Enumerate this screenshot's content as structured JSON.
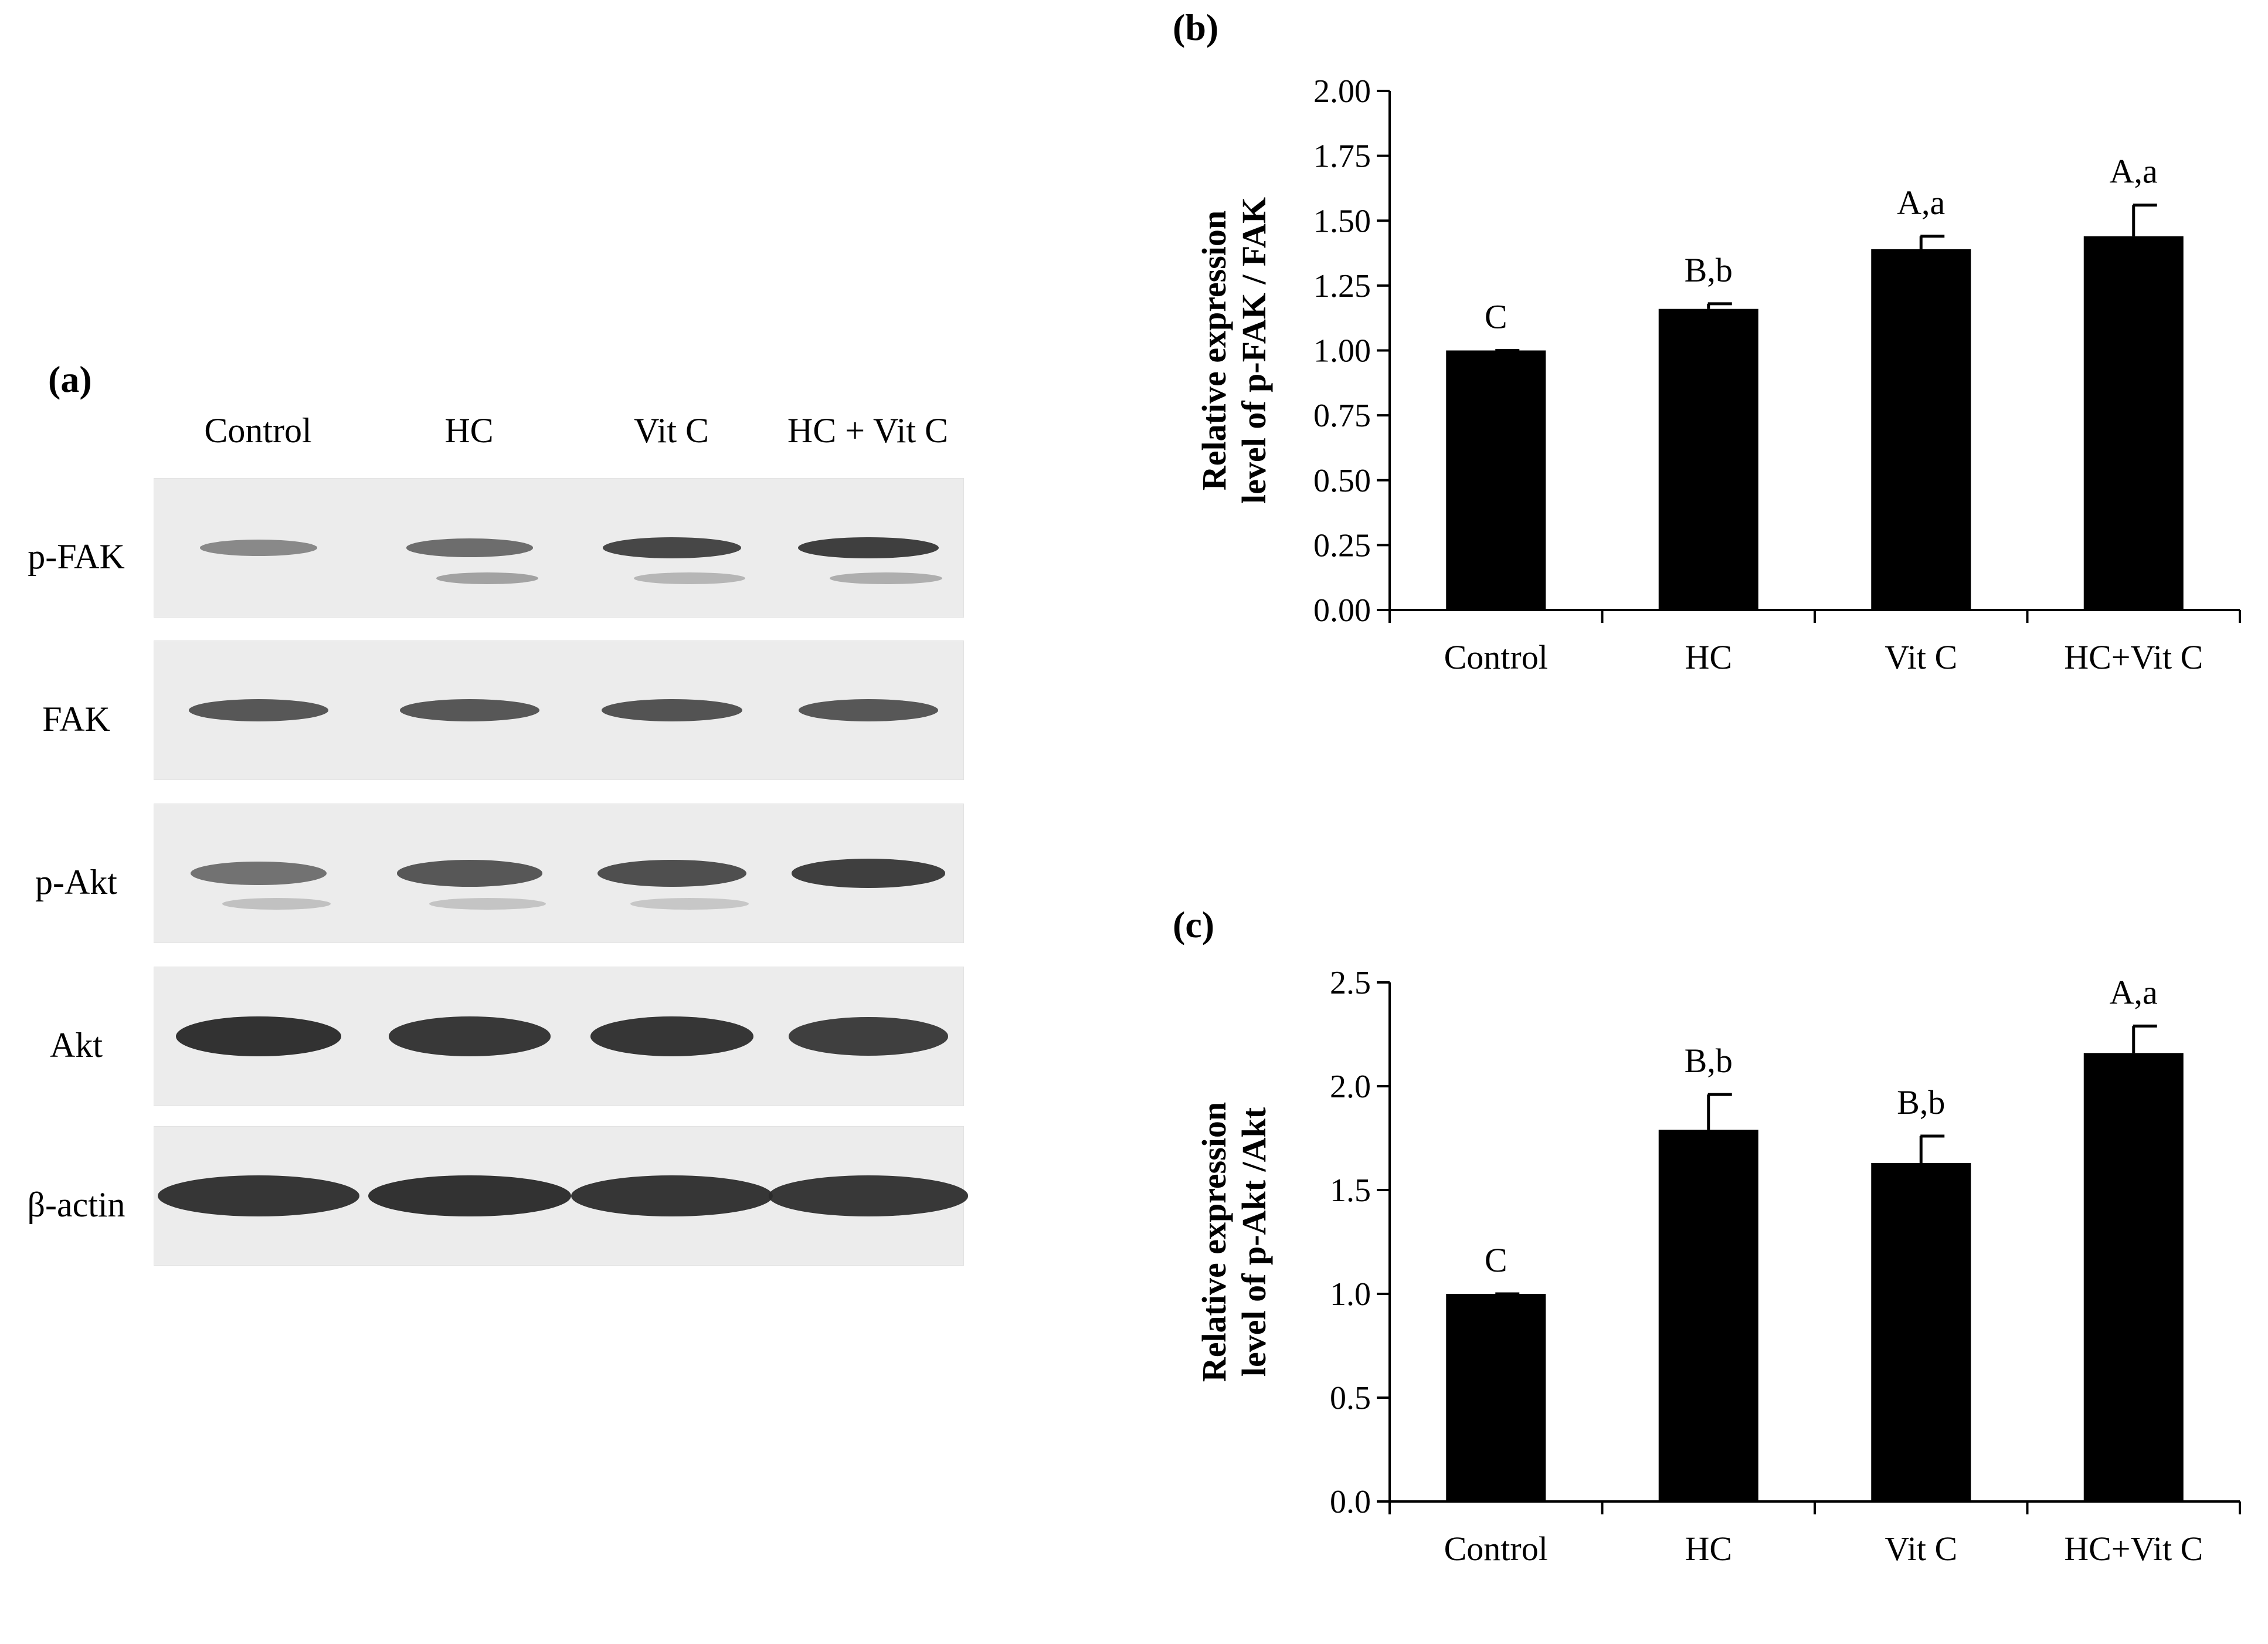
{
  "panel_a": {
    "label": "(a)",
    "lanes": [
      "Control",
      "HC",
      "Vit C",
      "HC + Vit C"
    ],
    "proteins": [
      {
        "name": "p-FAK",
        "intensity": [
          0.35,
          0.55,
          0.8,
          0.85
        ],
        "secondary": [
          0.0,
          0.45,
          0.25,
          0.35
        ]
      },
      {
        "name": "FAK",
        "intensity": [
          0.7,
          0.7,
          0.72,
          0.7
        ],
        "secondary": [
          0,
          0,
          0,
          0
        ]
      },
      {
        "name": "p-Akt",
        "intensity": [
          0.5,
          0.7,
          0.75,
          0.85
        ],
        "secondary": [
          0.15,
          0.1,
          0.08,
          0
        ]
      },
      {
        "name": "Akt",
        "intensity": [
          0.95,
          0.9,
          0.92,
          0.85
        ],
        "secondary": [
          0,
          0,
          0,
          0
        ]
      },
      {
        "name": "β-actin",
        "intensity": [
          0.92,
          0.95,
          0.92,
          0.9
        ],
        "secondary": [
          0,
          0,
          0,
          0
        ]
      }
    ]
  },
  "chart_data": [
    {
      "panel_label": "(b)",
      "type": "bar",
      "title": "",
      "ylabel_lines": [
        "Relative expression",
        "level of p-FAK / FAK"
      ],
      "categories": [
        "Control",
        "HC",
        "Vit C",
        "HC+Vit C"
      ],
      "values": [
        1.0,
        1.16,
        1.39,
        1.44
      ],
      "errors": [
        0.0,
        0.02,
        0.05,
        0.12
      ],
      "annotations": [
        "C",
        "B,b",
        "A,a",
        "A,a"
      ],
      "ylim": [
        0,
        2.0
      ],
      "yticks": [
        "0.00",
        "0.25",
        "0.50",
        "0.75",
        "1.00",
        "1.25",
        "1.50",
        "1.75",
        "2.00"
      ],
      "bar_color": "#000000",
      "grid": false
    },
    {
      "panel_label": "(c)",
      "type": "bar",
      "title": "",
      "ylabel_lines": [
        "Relative expression",
        "level of p-Akt /Akt"
      ],
      "categories": [
        "Control",
        "HC",
        "Vit C",
        "HC+Vit C"
      ],
      "values": [
        1.0,
        1.79,
        1.63,
        2.16
      ],
      "errors": [
        0.0,
        0.17,
        0.13,
        0.13
      ],
      "annotations": [
        "C",
        "B,b",
        "B,b",
        "A,a"
      ],
      "ylim": [
        0,
        2.5
      ],
      "yticks": [
        "0.0",
        "0.5",
        "1.0",
        "1.5",
        "2.0",
        "2.5"
      ],
      "bar_color": "#000000",
      "grid": false
    }
  ]
}
